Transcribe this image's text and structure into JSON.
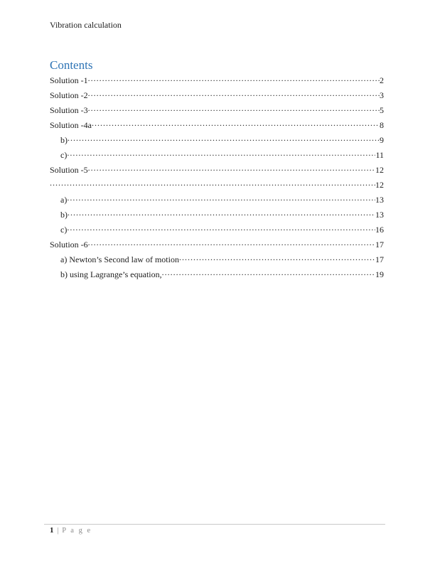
{
  "page": {
    "header_title": "Vibration calculation",
    "footer": {
      "page_number": "1",
      "separator": "|",
      "label": "P a g e"
    }
  },
  "contents": {
    "heading": "Contents",
    "heading_color": "#2E74B5",
    "entries": [
      {
        "label": "Solution -1",
        "page": "2",
        "level": 1
      },
      {
        "label": "Solution -2",
        "page": "3",
        "level": 1
      },
      {
        "label": "Solution -3",
        "page": "5",
        "level": 1
      },
      {
        "label": "Solution -4a",
        "page": "8",
        "level": 1
      },
      {
        "label": "b)",
        "page": "9",
        "level": 2
      },
      {
        "label": "c)",
        "page": "11",
        "level": 2
      },
      {
        "label": "Solution -5",
        "page": "12",
        "level": 1
      },
      {
        "label": "",
        "page": "12",
        "level": 1
      },
      {
        "label": "a)",
        "page": "13",
        "level": 2
      },
      {
        "label": "b)",
        "page": "13",
        "level": 2
      },
      {
        "label": "c)",
        "page": "16",
        "level": 2
      },
      {
        "label": "Solution -6",
        "page": "17",
        "level": 1
      },
      {
        "label": "a) Newton’s Second law of motion",
        "page": "17",
        "level": 2
      },
      {
        "label": "b) using Lagrange’s equation,",
        "page": "19",
        "level": 2
      }
    ]
  }
}
